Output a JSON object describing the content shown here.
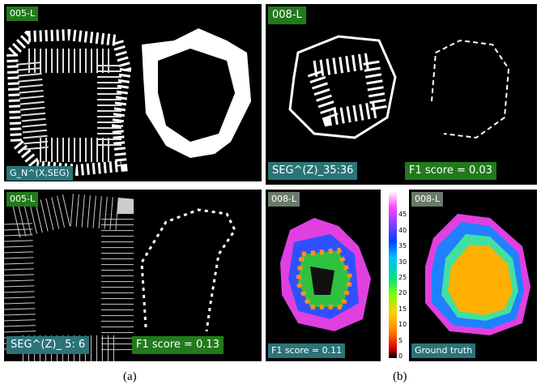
{
  "panel_a_top": {
    "id_label": "005-L",
    "method_label": "G_N^(X,SEG)"
  },
  "panel_a_bottom": {
    "id_label": "005-L",
    "method_label": "SEG^(Z)_ 5: 6",
    "score_label": "F1 score = 0.13"
  },
  "panel_b_top": {
    "id_label": "008-L",
    "method_label": "SEG^(Z)_35:36",
    "score_label": "F1 score = 0.03"
  },
  "panel_b_bottom": {
    "left_id_label": "008-L",
    "left_score_label": "F1 score = 0.11",
    "right_id_label": "008-L",
    "right_label": "Ground truth",
    "colorbar_ticks": [
      0,
      5,
      10,
      15,
      20,
      25,
      30,
      35,
      40,
      45
    ]
  },
  "captions": [
    "(a)",
    "(b)"
  ]
}
